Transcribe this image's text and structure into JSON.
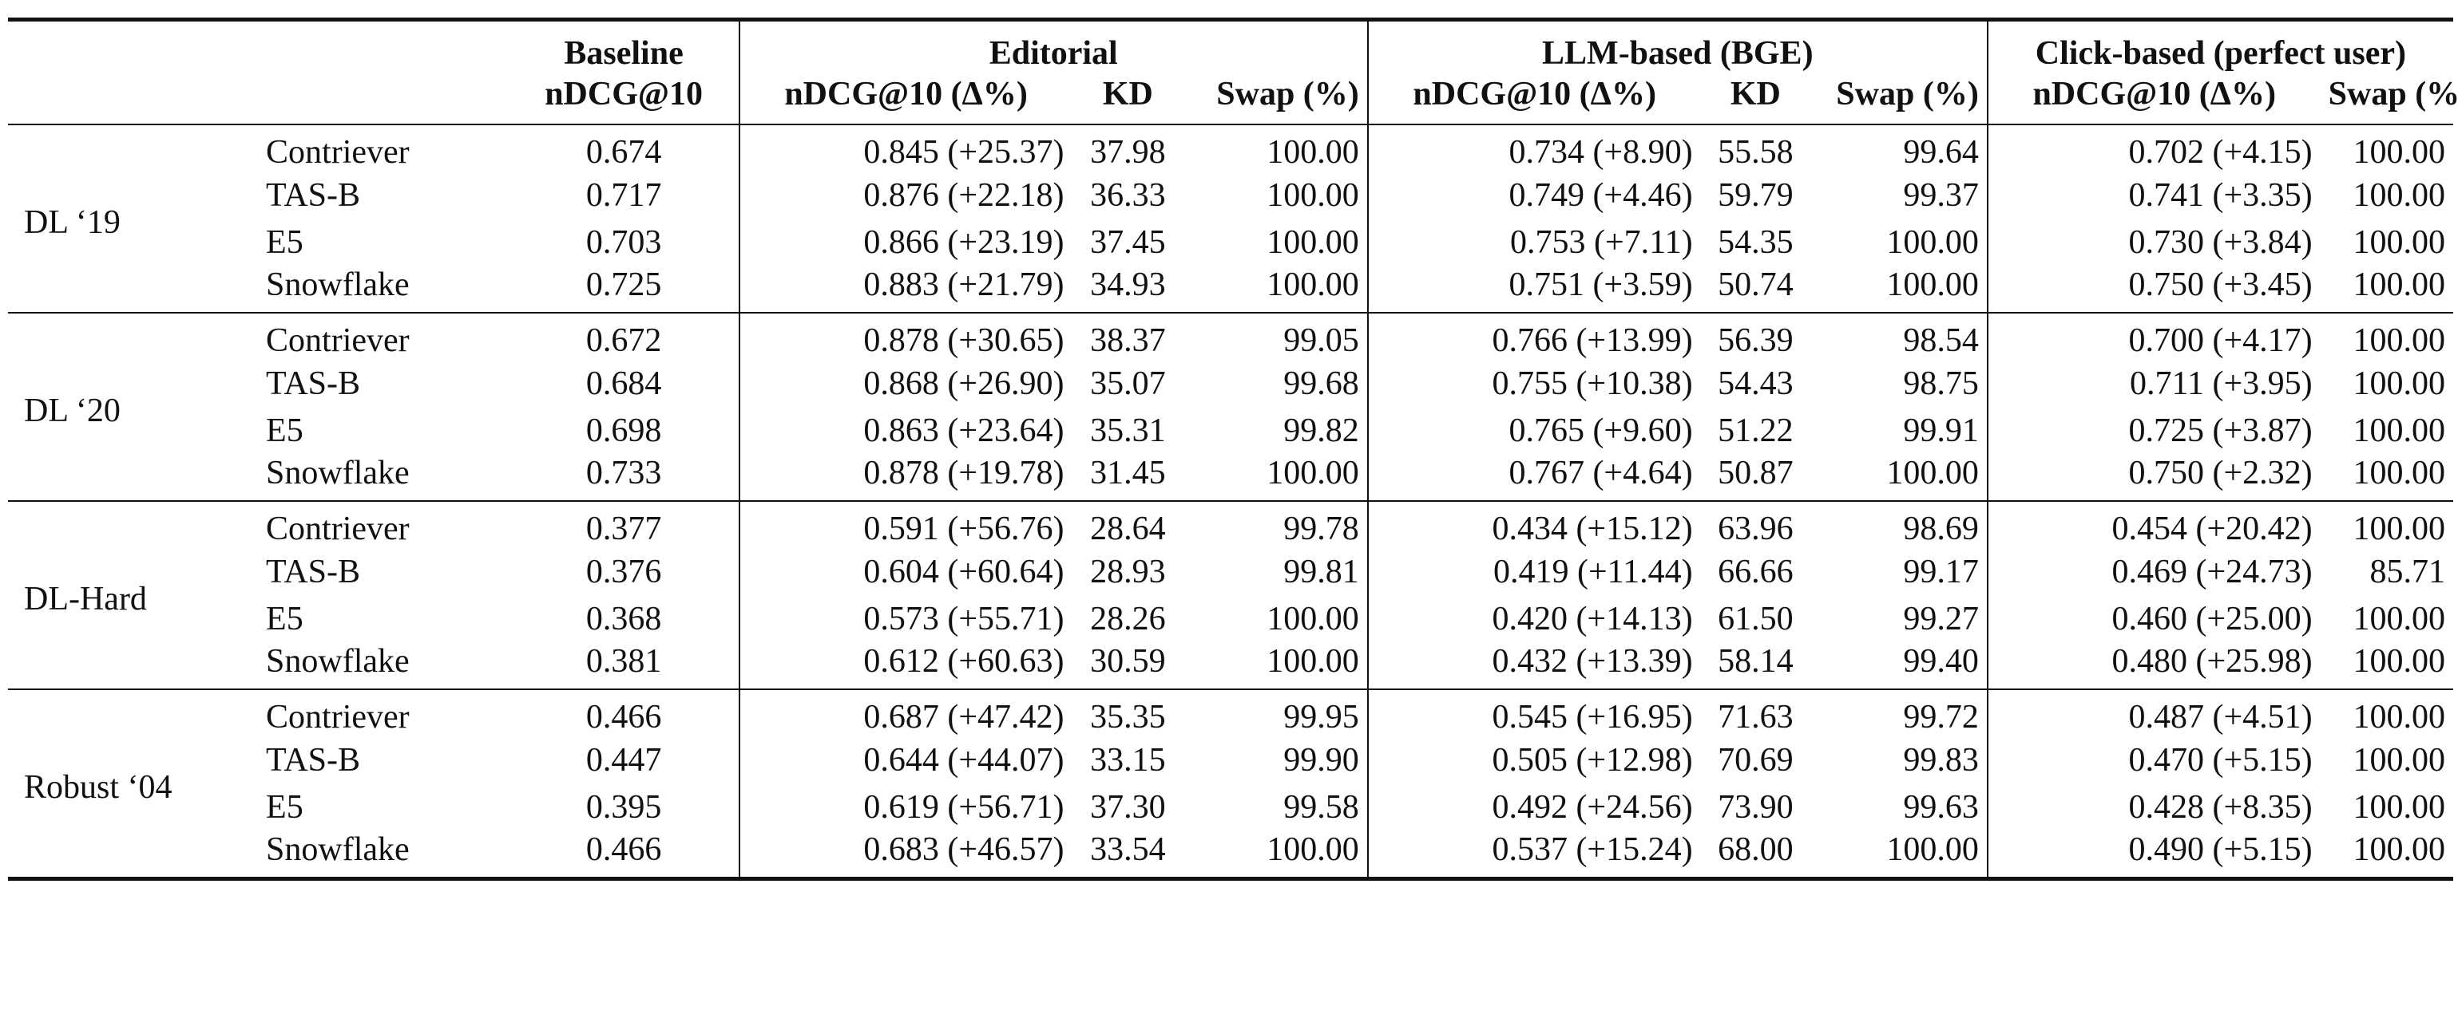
{
  "header": {
    "groups": {
      "baseline": "Baseline",
      "editorial": "Editorial",
      "llm": "LLM-based (BGE)",
      "click": "Click-based (perfect user)"
    },
    "columns": {
      "baseline_ndcg": "nDCG@10",
      "editorial_ndcg": "nDCG@10 (Δ%)",
      "editorial_kd": "KD",
      "editorial_swap": "Swap (%)",
      "llm_ndcg": "nDCG@10 (Δ%)",
      "llm_kd": "KD",
      "llm_swap": "Swap (%)",
      "click_ndcg": "nDCG@10 (Δ%)",
      "click_swap": "Swap (%)"
    }
  },
  "datasets": [
    {
      "name": "DL ‘19",
      "rows": [
        {
          "retriever": "Contriever",
          "baseline": "0.674",
          "editorial_ndcg": "0.845 (+25.37)",
          "editorial_kd": "37.98",
          "editorial_swap": "100.00",
          "llm_ndcg": "0.734 (+8.90)",
          "llm_kd": "55.58",
          "llm_swap": "99.64",
          "click_ndcg": "0.702 (+4.15)",
          "click_swap": "100.00"
        },
        {
          "retriever": "TAS-B",
          "baseline": "0.717",
          "editorial_ndcg": "0.876 (+22.18)",
          "editorial_kd": "36.33",
          "editorial_swap": "100.00",
          "llm_ndcg": "0.749 (+4.46)",
          "llm_kd": "59.79",
          "llm_swap": "99.37",
          "click_ndcg": "0.741 (+3.35)",
          "click_swap": "100.00"
        },
        {
          "retriever": "E5",
          "baseline": "0.703",
          "editorial_ndcg": "0.866 (+23.19)",
          "editorial_kd": "37.45",
          "editorial_swap": "100.00",
          "llm_ndcg": "0.753 (+7.11)",
          "llm_kd": "54.35",
          "llm_swap": "100.00",
          "click_ndcg": "0.730 (+3.84)",
          "click_swap": "100.00"
        },
        {
          "retriever": "Snowflake",
          "baseline": "0.725",
          "editorial_ndcg": "0.883 (+21.79)",
          "editorial_kd": "34.93",
          "editorial_swap": "100.00",
          "llm_ndcg": "0.751 (+3.59)",
          "llm_kd": "50.74",
          "llm_swap": "100.00",
          "click_ndcg": "0.750 (+3.45)",
          "click_swap": "100.00"
        }
      ]
    },
    {
      "name": "DL ‘20",
      "rows": [
        {
          "retriever": "Contriever",
          "baseline": "0.672",
          "editorial_ndcg": "0.878 (+30.65)",
          "editorial_kd": "38.37",
          "editorial_swap": "99.05",
          "llm_ndcg": "0.766 (+13.99)",
          "llm_kd": "56.39",
          "llm_swap": "98.54",
          "click_ndcg": "0.700 (+4.17)",
          "click_swap": "100.00"
        },
        {
          "retriever": "TAS-B",
          "baseline": "0.684",
          "editorial_ndcg": "0.868 (+26.90)",
          "editorial_kd": "35.07",
          "editorial_swap": "99.68",
          "llm_ndcg": "0.755 (+10.38)",
          "llm_kd": "54.43",
          "llm_swap": "98.75",
          "click_ndcg": "0.711 (+3.95)",
          "click_swap": "100.00"
        },
        {
          "retriever": "E5",
          "baseline": "0.698",
          "editorial_ndcg": "0.863 (+23.64)",
          "editorial_kd": "35.31",
          "editorial_swap": "99.82",
          "llm_ndcg": "0.765 (+9.60)",
          "llm_kd": "51.22",
          "llm_swap": "99.91",
          "click_ndcg": "0.725 (+3.87)",
          "click_swap": "100.00"
        },
        {
          "retriever": "Snowflake",
          "baseline": "0.733",
          "editorial_ndcg": "0.878 (+19.78)",
          "editorial_kd": "31.45",
          "editorial_swap": "100.00",
          "llm_ndcg": "0.767 (+4.64)",
          "llm_kd": "50.87",
          "llm_swap": "100.00",
          "click_ndcg": "0.750 (+2.32)",
          "click_swap": "100.00"
        }
      ]
    },
    {
      "name": "DL-Hard",
      "rows": [
        {
          "retriever": "Contriever",
          "baseline": "0.377",
          "editorial_ndcg": "0.591 (+56.76)",
          "editorial_kd": "28.64",
          "editorial_swap": "99.78",
          "llm_ndcg": "0.434 (+15.12)",
          "llm_kd": "63.96",
          "llm_swap": "98.69",
          "click_ndcg": "0.454 (+20.42)",
          "click_swap": "100.00"
        },
        {
          "retriever": "TAS-B",
          "baseline": "0.376",
          "editorial_ndcg": "0.604 (+60.64)",
          "editorial_kd": "28.93",
          "editorial_swap": "99.81",
          "llm_ndcg": "0.419 (+11.44)",
          "llm_kd": "66.66",
          "llm_swap": "99.17",
          "click_ndcg": "0.469 (+24.73)",
          "click_swap": "85.71"
        },
        {
          "retriever": "E5",
          "baseline": "0.368",
          "editorial_ndcg": "0.573 (+55.71)",
          "editorial_kd": "28.26",
          "editorial_swap": "100.00",
          "llm_ndcg": "0.420 (+14.13)",
          "llm_kd": "61.50",
          "llm_swap": "99.27",
          "click_ndcg": "0.460 (+25.00)",
          "click_swap": "100.00"
        },
        {
          "retriever": "Snowflake",
          "baseline": "0.381",
          "editorial_ndcg": "0.612 (+60.63)",
          "editorial_kd": "30.59",
          "editorial_swap": "100.00",
          "llm_ndcg": "0.432 (+13.39)",
          "llm_kd": "58.14",
          "llm_swap": "99.40",
          "click_ndcg": "0.480 (+25.98)",
          "click_swap": "100.00"
        }
      ]
    },
    {
      "name": "Robust ‘04",
      "rows": [
        {
          "retriever": "Contriever",
          "baseline": "0.466",
          "editorial_ndcg": "0.687 (+47.42)",
          "editorial_kd": "35.35",
          "editorial_swap": "99.95",
          "llm_ndcg": "0.545 (+16.95)",
          "llm_kd": "71.63",
          "llm_swap": "99.72",
          "click_ndcg": "0.487 (+4.51)",
          "click_swap": "100.00"
        },
        {
          "retriever": "TAS-B",
          "baseline": "0.447",
          "editorial_ndcg": "0.644 (+44.07)",
          "editorial_kd": "33.15",
          "editorial_swap": "99.90",
          "llm_ndcg": "0.505 (+12.98)",
          "llm_kd": "70.69",
          "llm_swap": "99.83",
          "click_ndcg": "0.470 (+5.15)",
          "click_swap": "100.00"
        },
        {
          "retriever": "E5",
          "baseline": "0.395",
          "editorial_ndcg": "0.619 (+56.71)",
          "editorial_kd": "37.30",
          "editorial_swap": "99.58",
          "llm_ndcg": "0.492 (+24.56)",
          "llm_kd": "73.90",
          "llm_swap": "99.63",
          "click_ndcg": "0.428 (+8.35)",
          "click_swap": "100.00"
        },
        {
          "retriever": "Snowflake",
          "baseline": "0.466",
          "editorial_ndcg": "0.683 (+46.57)",
          "editorial_kd": "33.54",
          "editorial_swap": "100.00",
          "llm_ndcg": "0.537 (+15.24)",
          "llm_kd": "68.00",
          "llm_swap": "100.00",
          "click_ndcg": "0.490 (+5.15)",
          "click_swap": "100.00"
        }
      ]
    }
  ]
}
